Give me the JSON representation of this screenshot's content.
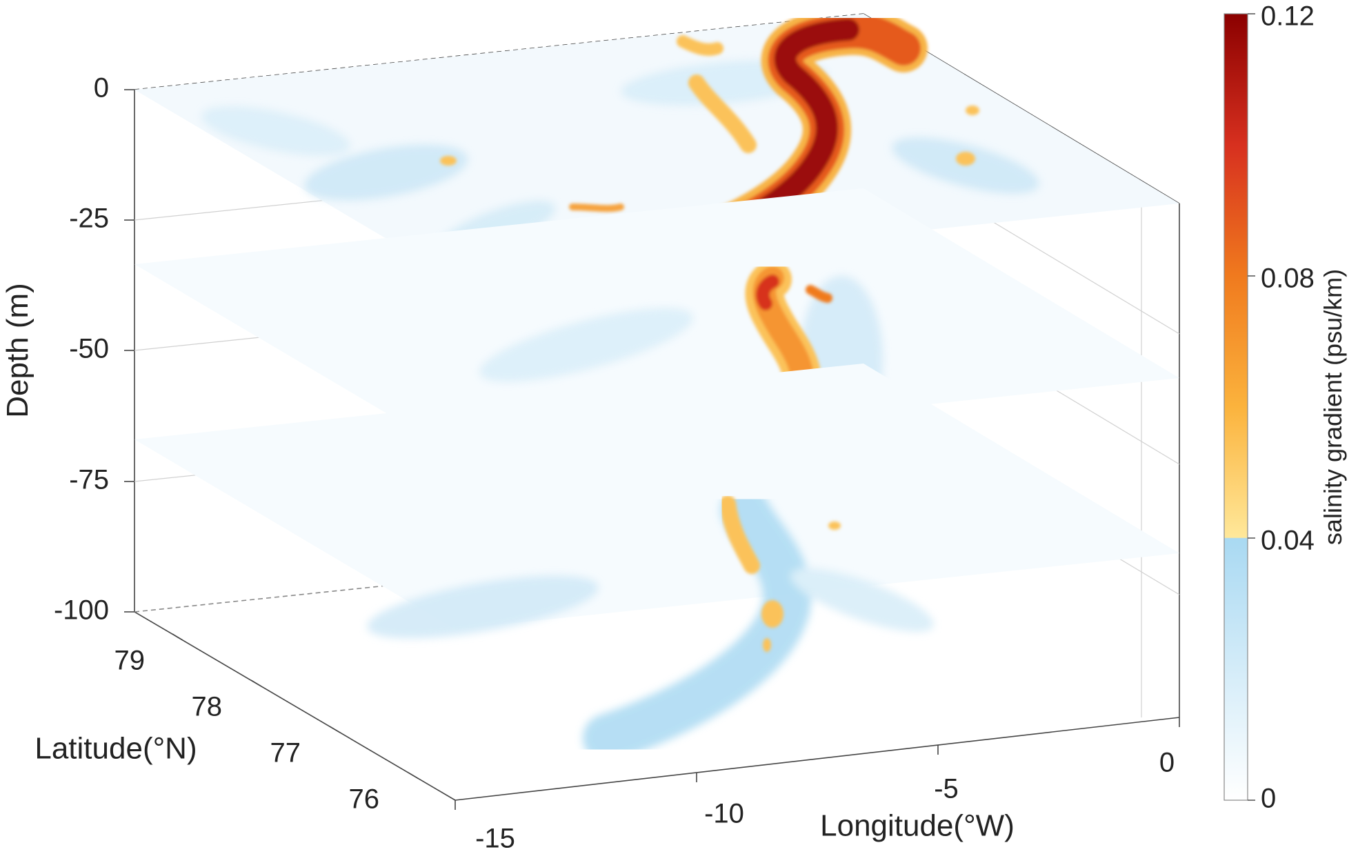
{
  "chart_data": {
    "type": "heatmap",
    "subtype": "3d-stacked-slices",
    "title": "",
    "xlabel": "Longitude(°W)",
    "ylabel": "Latitude(°N)",
    "zlabel": "Depth (m)",
    "colorbar_label": "salinity gradient (psu/km)",
    "x_ticks": [
      "-15",
      "-10",
      "-5",
      "0"
    ],
    "y_ticks": [
      "76",
      "77",
      "78",
      "79"
    ],
    "z_ticks": [
      "0",
      "-25",
      "-50",
      "-75",
      "-100"
    ],
    "colorbar_ticks": [
      "0",
      "0.04",
      "0.08",
      "0.12"
    ],
    "xlim": [
      -15,
      0
    ],
    "ylim": [
      75.5,
      79.5
    ],
    "zlim": [
      -100,
      0
    ],
    "clim": [
      0,
      0.12
    ],
    "colormap": {
      "stops": [
        {
          "value": 0.0,
          "color": "#ffffff"
        },
        {
          "value": 0.04,
          "color": "#a9d9f2"
        },
        {
          "value": 0.0401,
          "color": "#ffe89a"
        },
        {
          "value": 0.06,
          "color": "#fbb33d"
        },
        {
          "value": 0.08,
          "color": "#f07a1e"
        },
        {
          "value": 0.1,
          "color": "#d7301f"
        },
        {
          "value": 0.12,
          "color": "#8b0000"
        }
      ]
    },
    "slices": [
      {
        "depth": 0,
        "front_max": 0.12,
        "front_note_color": "#9b0a0a"
      },
      {
        "depth": -50,
        "front_max": 0.09,
        "front_note_color": "#e8591a"
      },
      {
        "depth": -100,
        "front_max": 0.06,
        "front_note_color": "#f4a640"
      }
    ],
    "grid": true,
    "legend": "colorbar-right"
  }
}
